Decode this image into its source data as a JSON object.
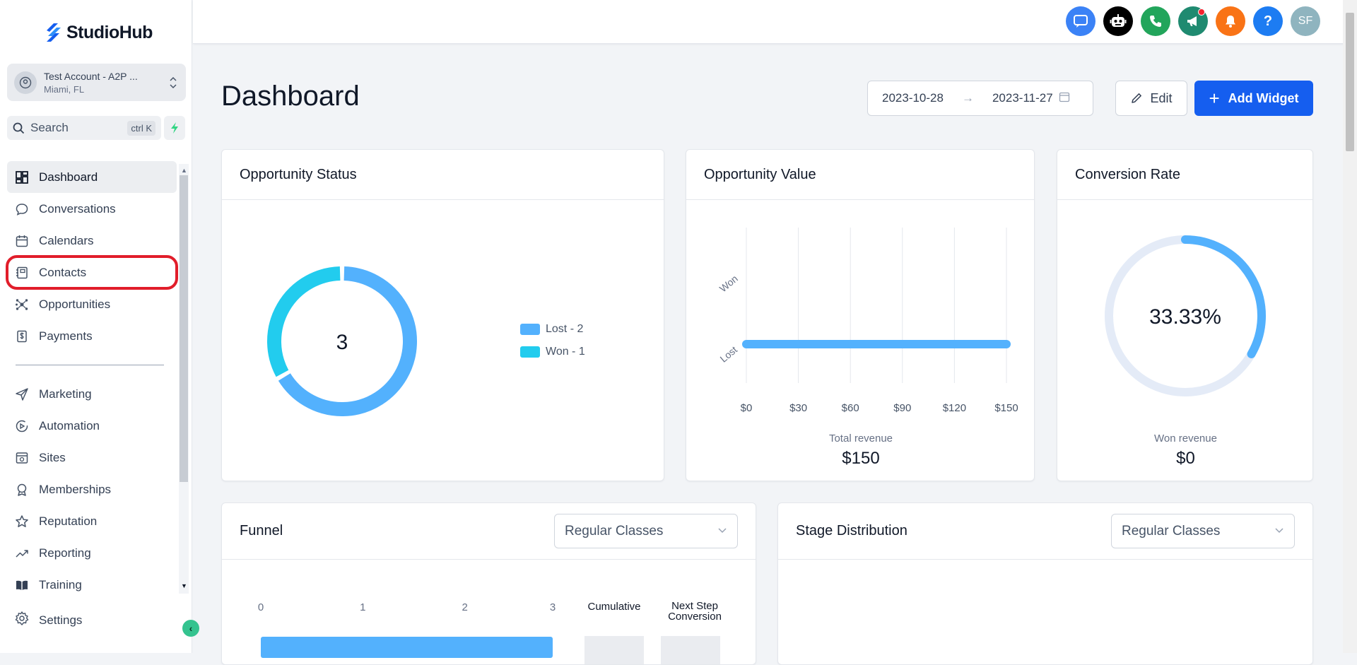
{
  "app": {
    "logo_text": "StudioHub"
  },
  "account": {
    "name": "Test Account - A2P ...",
    "location": "Miami, FL"
  },
  "search": {
    "label": "Search",
    "shortcut": "ctrl K"
  },
  "nav": {
    "primary": [
      {
        "label": "Dashboard",
        "icon": "dashboard-icon"
      },
      {
        "label": "Conversations",
        "icon": "chat-bubble-icon"
      },
      {
        "label": "Calendars",
        "icon": "calendar-icon"
      },
      {
        "label": "Contacts",
        "icon": "contacts-book-icon"
      },
      {
        "label": "Opportunities",
        "icon": "opportunities-icon"
      },
      {
        "label": "Payments",
        "icon": "payments-icon"
      }
    ],
    "secondary": [
      {
        "label": "Marketing",
        "icon": "paper-plane-icon"
      },
      {
        "label": "Automation",
        "icon": "automation-icon"
      },
      {
        "label": "Sites",
        "icon": "sites-icon"
      },
      {
        "label": "Memberships",
        "icon": "membership-badge-icon"
      },
      {
        "label": "Reputation",
        "icon": "star-icon"
      },
      {
        "label": "Reporting",
        "icon": "trend-line-icon"
      },
      {
        "label": "Training",
        "icon": "book-icon"
      }
    ],
    "settings_label": "Settings"
  },
  "topbar": {
    "avatar_initials": "SF",
    "help_label": "?",
    "colors": {
      "chat": "#3b82f6",
      "bot": "#000000",
      "phone": "#22a55b",
      "announce": "#1f8a70",
      "bell": "#f97316",
      "help": "#1d7cf2",
      "avatar": "#8fb4bf"
    }
  },
  "header": {
    "title": "Dashboard",
    "date_start": "2023-10-28",
    "date_end": "2023-11-27",
    "edit_label": "Edit",
    "add_widget_label": "Add Widget"
  },
  "widgets": {
    "opportunity_status": {
      "title": "Opportunity Status",
      "center_value": "3"
    },
    "opportunity_value": {
      "title": "Opportunity Value",
      "footer_label": "Total revenue",
      "footer_value": "$150"
    },
    "conversion_rate": {
      "title": "Conversion Rate",
      "center_value": "33.33%",
      "footer_label": "Won revenue",
      "footer_value": "$0"
    },
    "funnel": {
      "title": "Funnel",
      "select_value": "Regular Classes",
      "col_cumulative": "Cumulative",
      "col_next_step": "Next Step Conversion"
    },
    "stage_distribution": {
      "title": "Stage Distribution",
      "select_value": "Regular Classes"
    }
  },
  "chart_data": [
    {
      "type": "pie",
      "slices": [
        {
          "name": "Lost",
          "value": 2,
          "color": "#53b1fd"
        },
        {
          "name": "Won",
          "value": 1,
          "color": "#22ccee"
        }
      ],
      "legend": [
        "Lost - 2",
        "Won - 1"
      ],
      "legend_placement": "right"
    },
    {
      "type": "bar",
      "orientation": "horizontal",
      "categories": [
        "Won",
        "Lost"
      ],
      "values": [
        0,
        150
      ],
      "xticks": [
        "$0",
        "$30",
        "$60",
        "$90",
        "$120",
        "$150"
      ],
      "xlim": [
        0,
        150
      ],
      "grid": true,
      "color": "#53b1fd"
    },
    {
      "type": "pie",
      "value_percent": 33.33,
      "color": "#53b1fd",
      "track_color": "#e4ebf7"
    },
    {
      "type": "bar",
      "orientation": "horizontal",
      "xticks": [
        "0",
        "1",
        "2",
        "3"
      ],
      "xlim": [
        0,
        3
      ],
      "values": [
        3
      ],
      "color": "#53b1fd"
    }
  ]
}
